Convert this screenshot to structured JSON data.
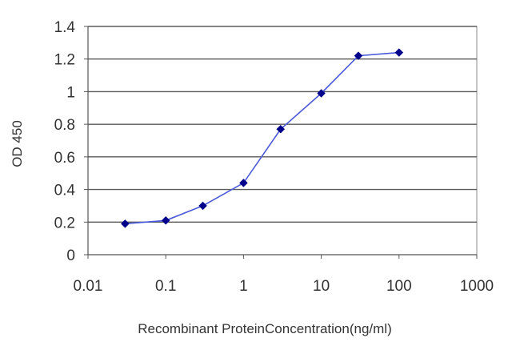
{
  "chart_data": {
    "type": "line",
    "title": "",
    "xlabel": "Recombinant ProteinConcentration(ng/ml)",
    "ylabel": "OD 450",
    "x_scale": "log",
    "xlim": [
      0.01,
      1000
    ],
    "ylim": [
      0,
      1.4
    ],
    "x_ticks": [
      0.01,
      0.1,
      1,
      10,
      100,
      1000
    ],
    "x_tick_labels": [
      "0.01",
      "0.1",
      "1",
      "10",
      "100",
      "1000"
    ],
    "y_ticks": [
      0,
      0.2,
      0.4,
      0.6,
      0.8,
      1,
      1.2,
      1.4
    ],
    "y_tick_labels": [
      "0",
      "0.2",
      "0.4",
      "0.6",
      "0.8",
      "1",
      "1.2",
      "1.4"
    ],
    "grid": "horizontal",
    "legend": "none",
    "series": [
      {
        "x": [
          0.03,
          0.1,
          0.3,
          1,
          3,
          10,
          30,
          100
        ],
        "y": [
          0.19,
          0.21,
          0.3,
          0.44,
          0.77,
          0.99,
          1.22,
          1.24
        ],
        "color": "#00008b"
      }
    ]
  }
}
